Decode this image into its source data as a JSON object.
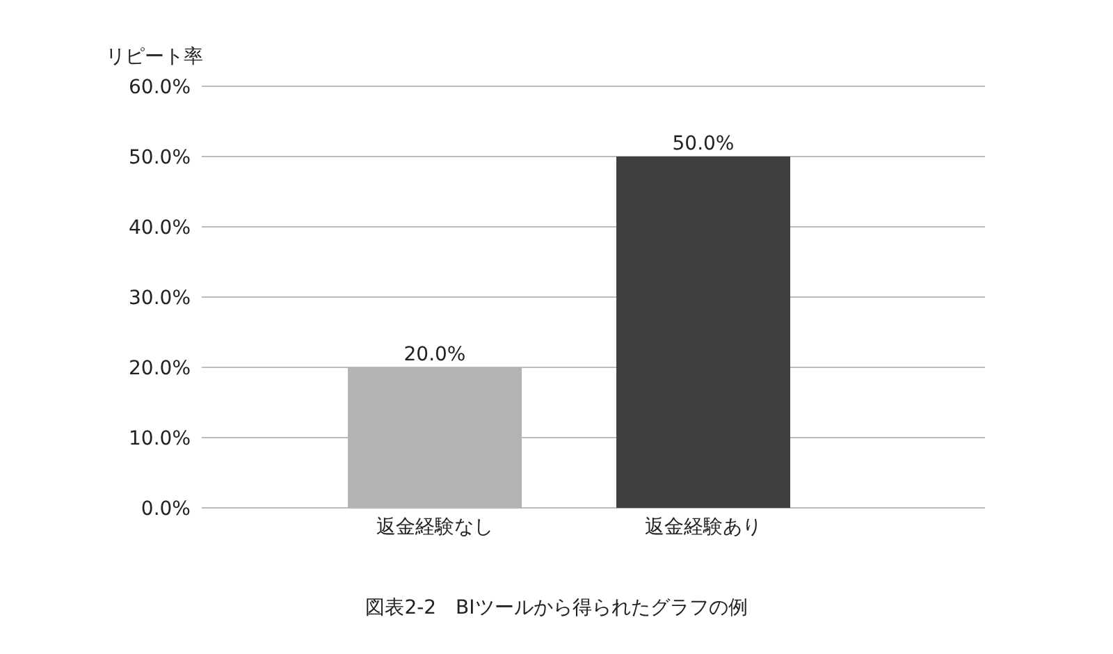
{
  "chart_data": {
    "type": "bar",
    "ylabel": "リピート率",
    "annotations": [
      "図表2-2　BIツールから得られたグラフの例"
    ],
    "categories": [
      "返金経験なし",
      "返金経験あり"
    ],
    "values": [
      20,
      50
    ],
    "colors": [
      "#b3b3b3",
      "#404040"
    ],
    "value_labels": [
      "20.0%",
      "50.0%"
    ],
    "ylim": [
      0,
      60
    ],
    "yticks": [
      {
        "value": 0,
        "label": "0.0%"
      },
      {
        "value": 10,
        "label": "10.0%"
      },
      {
        "value": 20,
        "label": "20.0%"
      },
      {
        "value": 30,
        "label": "30.0%"
      },
      {
        "value": 40,
        "label": "40.0%"
      },
      {
        "value": 50,
        "label": "50.0%"
      },
      {
        "value": 60,
        "label": "60.0%"
      }
    ],
    "grid": "y"
  }
}
